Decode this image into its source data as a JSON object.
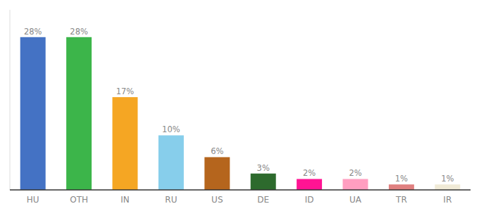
{
  "chart_data": {
    "type": "bar",
    "categories": [
      "HU",
      "OTH",
      "IN",
      "RU",
      "US",
      "DE",
      "ID",
      "UA",
      "TR",
      "IR"
    ],
    "values": [
      28,
      28,
      17,
      10,
      6,
      3,
      2,
      2,
      1,
      1
    ],
    "value_labels": [
      "28%",
      "28%",
      "17%",
      "10%",
      "6%",
      "3%",
      "2%",
      "2%",
      "1%",
      "1%"
    ],
    "colors": [
      "#4472c4",
      "#3cb54a",
      "#f5a623",
      "#87ceeb",
      "#b5651d",
      "#2d6a2d",
      "#ff1493",
      "#ff9ec0",
      "#e08080",
      "#f0ead6"
    ],
    "ylim": [
      0,
      33
    ],
    "data_labels": true,
    "tick_labels": "x",
    "grid": false
  }
}
